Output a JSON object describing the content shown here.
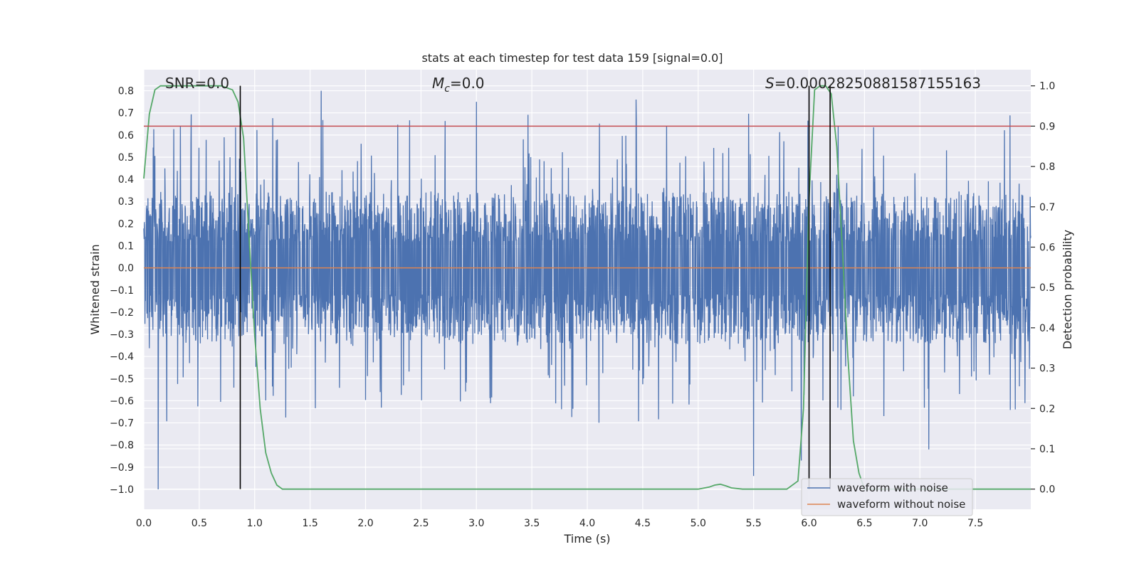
{
  "chart_data": {
    "type": "line",
    "title": "stats at each timestep for test data 159 [signal=0.0]",
    "xlabel": "Time (s)",
    "ylabel_left": "Whitened strain",
    "ylabel_right": "Detection probability",
    "xlim": [
      0.0,
      8.0
    ],
    "ylim_left": [
      -1.09,
      0.895
    ],
    "ylim_right": [
      -0.05,
      1.04
    ],
    "x_ticks": [
      "0.0",
      "0.5",
      "1.0",
      "1.5",
      "2.0",
      "2.5",
      "3.0",
      "3.5",
      "4.0",
      "4.5",
      "5.0",
      "5.5",
      "6.0",
      "6.5",
      "7.0",
      "7.5"
    ],
    "y_ticks_left": [
      "0.8",
      "0.7",
      "0.6",
      "0.5",
      "0.4",
      "0.3",
      "0.2",
      "0.1",
      "0.0",
      "−0.1",
      "−0.2",
      "−0.3",
      "−0.4",
      "−0.5",
      "−0.6",
      "−0.7",
      "−0.8",
      "−0.9",
      "−1.0"
    ],
    "y_ticks_right": [
      "1.0",
      "0.9",
      "0.8",
      "0.7",
      "0.6",
      "0.5",
      "0.4",
      "0.3",
      "0.2",
      "0.1",
      "0.0"
    ],
    "grid": true,
    "legend_placement": "lower-right",
    "annotations": {
      "snr": "SNR=0.0",
      "mc_symbol": "M",
      "mc_sub": "c",
      "mc_value": "=0.0",
      "s_symbol": "S",
      "s_value": "=0.000282508815871551​63"
    },
    "series": [
      {
        "name": "waveform with noise",
        "axis": "left",
        "color": "#4c72b0",
        "envelope_typical": [
          -0.3,
          0.3
        ],
        "peak_max": 0.8,
        "peak_min": -1.0,
        "peaks": [
          [
            0.13,
            -1.0
          ],
          [
            1.6,
            0.8
          ],
          [
            0.33,
            0.64
          ],
          [
            5.5,
            -0.94
          ],
          [
            5.93,
            -0.87
          ],
          [
            7.08,
            -0.82
          ],
          [
            3.0,
            0.75
          ],
          [
            4.44,
            0.76
          ]
        ]
      },
      {
        "name": "waveform without noise",
        "axis": "left",
        "color": "#dd8452",
        "x": [
          0.0,
          8.0
        ],
        "y": [
          0.0,
          0.0
        ]
      },
      {
        "axis": "right",
        "color": "#55a868",
        "x": [
          0.0,
          0.05,
          0.1,
          0.15,
          0.2,
          0.3,
          0.5,
          0.7,
          0.8,
          0.85,
          0.9,
          0.95,
          1.0,
          1.05,
          1.1,
          1.15,
          1.2,
          1.25,
          1.4,
          1.9,
          2.0,
          3.0,
          5.0,
          5.1,
          5.15,
          5.2,
          5.25,
          5.3,
          5.4,
          5.8,
          5.9,
          5.95,
          6.0,
          6.05,
          6.1,
          6.15,
          6.2,
          6.25,
          6.3,
          6.35,
          6.4,
          6.45,
          6.5,
          8.0
        ],
        "y": [
          0.77,
          0.93,
          0.99,
          1.0,
          1.0,
          1.0,
          1.0,
          1.0,
          0.99,
          0.96,
          0.87,
          0.62,
          0.38,
          0.2,
          0.09,
          0.04,
          0.01,
          0.0,
          0.0,
          0.0,
          0.0,
          0.0,
          0.0,
          0.005,
          0.01,
          0.012,
          0.008,
          0.003,
          0.0,
          0.0,
          0.02,
          0.2,
          0.72,
          0.99,
          1.0,
          1.0,
          0.98,
          0.85,
          0.6,
          0.33,
          0.12,
          0.04,
          0.0,
          0.0
        ]
      },
      {
        "axis": "right",
        "color": "#c44e52",
        "type": "hline",
        "y": 0.9
      }
    ],
    "vlines": [
      0.87,
      6.0,
      6.19
    ]
  }
}
